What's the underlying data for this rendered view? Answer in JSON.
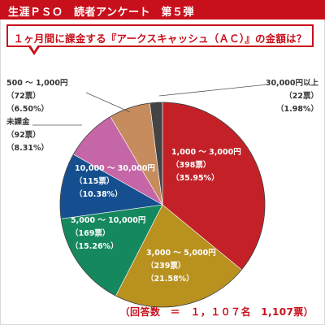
{
  "header": {
    "title": "生涯ＰＳＯ　読者アンケート　第５弾"
  },
  "question": "１ヶ月間に課金する『アークスキャッシュ（ＡＣ）』の金額は？",
  "footer": "（回答数　＝　１，１０７名　1,107票）",
  "colors": {
    "brand": "#c8101c",
    "slices": [
      "#c32127",
      "#b8911f",
      "#16885e",
      "#154f8f",
      "#c566a6",
      "#c78c5e",
      "#444444"
    ]
  },
  "chart_data": {
    "type": "pie",
    "start_angle_deg": 0,
    "direction": "clockwise",
    "slices": [
      {
        "name": "1,000 ～ 3,000円",
        "votes_label": "（398票）",
        "percent_label": "（35.95%）",
        "votes": 398,
        "percent": 35.95
      },
      {
        "name": "3,000 ～ 5,000円",
        "votes_label": "（239票）",
        "percent_label": "（21.58%）",
        "votes": 239,
        "percent": 21.58
      },
      {
        "name": "5,000 ～ 10,000円",
        "votes_label": "（169票）",
        "percent_label": "（15.26%）",
        "votes": 169,
        "percent": 15.26
      },
      {
        "name": "10,000 ～ 30,000円",
        "votes_label": "（115票）",
        "percent_label": "（10.38%）",
        "votes": 115,
        "percent": 10.38
      },
      {
        "name": "未課金",
        "votes_label": "（92票）",
        "percent_label": "（8.31%）",
        "votes": 92,
        "percent": 8.31
      },
      {
        "name": "500 ～ 1,000円",
        "votes_label": "（72票）",
        "percent_label": "（6.50%）",
        "votes": 72,
        "percent": 6.5
      },
      {
        "name": "30,000円以上",
        "votes_label": "（22票）",
        "percent_label": "（1.98%）",
        "votes": 22,
        "percent": 1.98
      }
    ],
    "total_votes": 1107
  }
}
